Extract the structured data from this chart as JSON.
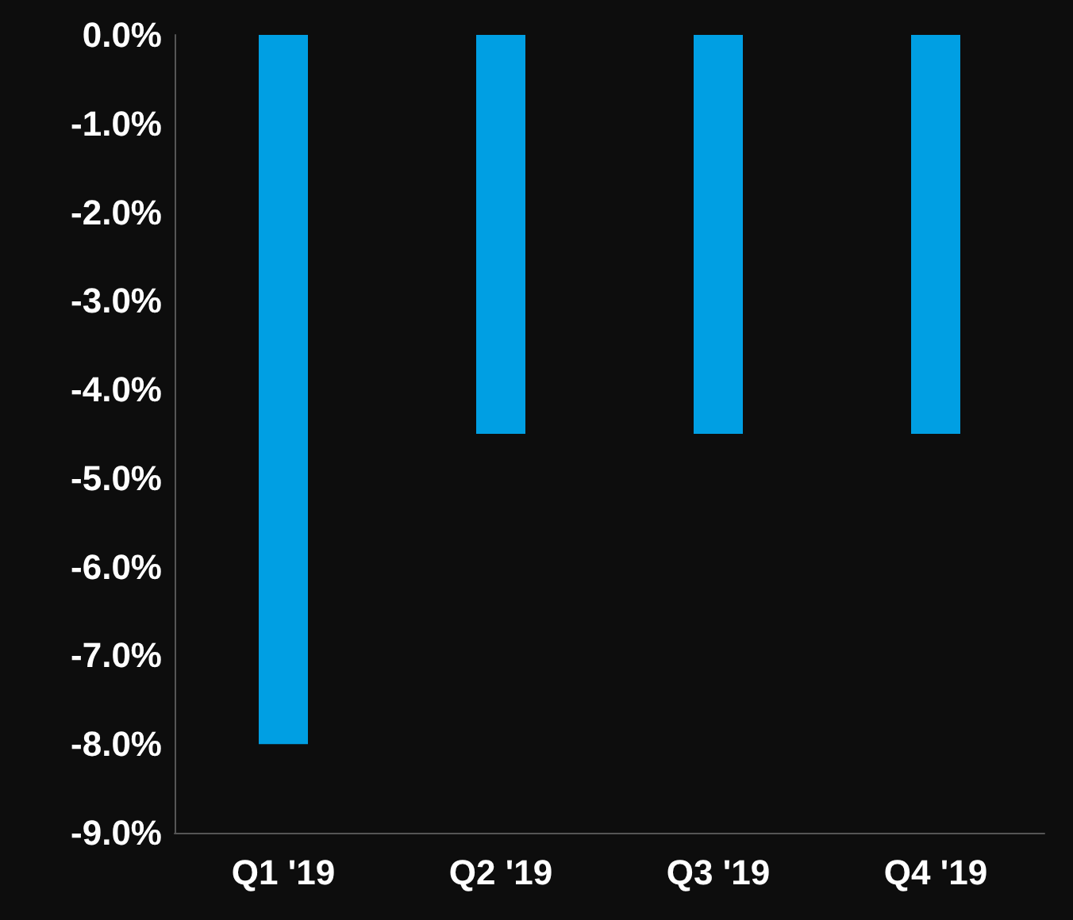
{
  "chart_data": {
    "type": "bar",
    "categories": [
      "Q1 '19",
      "Q2 '19",
      "Q3 '19",
      "Q4 '19"
    ],
    "values": [
      -8.0,
      -4.5,
      -4.5,
      -4.5
    ],
    "color": "#009fe3",
    "ylim": [
      -9,
      0
    ],
    "yticks": [
      {
        "value": 0,
        "label": "0.0%"
      },
      {
        "value": -1,
        "label": "-1.0%"
      },
      {
        "value": -2,
        "label": "-2.0%"
      },
      {
        "value": -3,
        "label": "-3.0%"
      },
      {
        "value": -4,
        "label": "-4.0%"
      },
      {
        "value": -5,
        "label": "-5.0%"
      },
      {
        "value": -6,
        "label": "-6.0%"
      },
      {
        "value": -7,
        "label": "-7.0%"
      },
      {
        "value": -8,
        "label": "-8.0%"
      },
      {
        "value": -9,
        "label": "-9.0%"
      }
    ],
    "grid": false
  }
}
